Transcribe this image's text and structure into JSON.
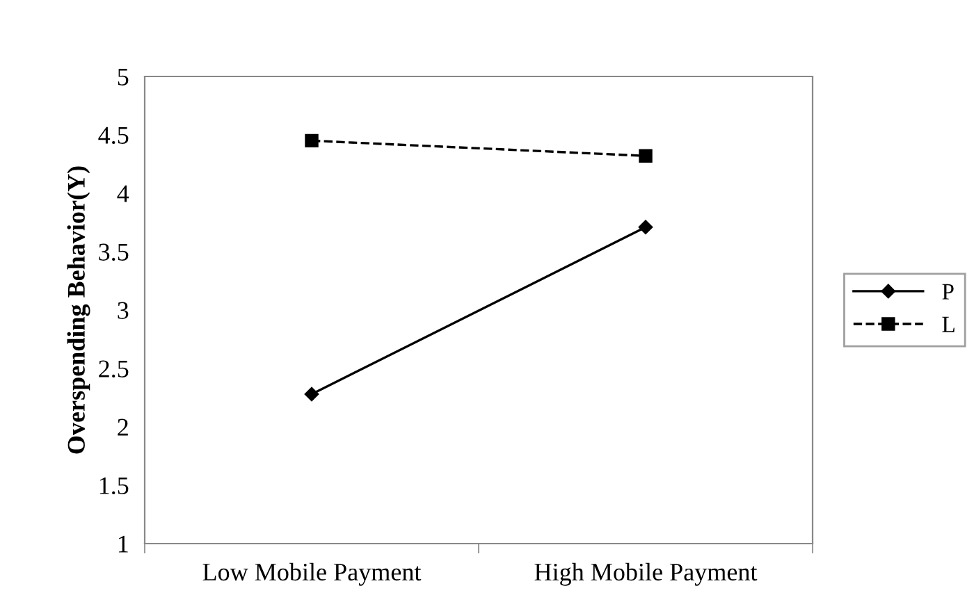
{
  "chart_data": {
    "type": "line",
    "ylabel": "Overspending Behavior(Y)",
    "categories": [
      "Low Mobile Payment",
      "High Mobile Payment"
    ],
    "series": [
      {
        "name": "P",
        "color": "#000000",
        "values": [
          2.28,
          3.71
        ],
        "marker": "diamond",
        "line_style": "solid"
      },
      {
        "name": "L",
        "color": "#000000",
        "values": [
          4.45,
          4.32
        ],
        "marker": "square",
        "line_style": "dashed"
      }
    ],
    "ylim": [
      1,
      5
    ],
    "yticks": [
      1,
      1.5,
      2,
      2.5,
      3,
      3.5,
      4,
      4.5,
      5
    ],
    "grid": false,
    "legend": "right"
  }
}
